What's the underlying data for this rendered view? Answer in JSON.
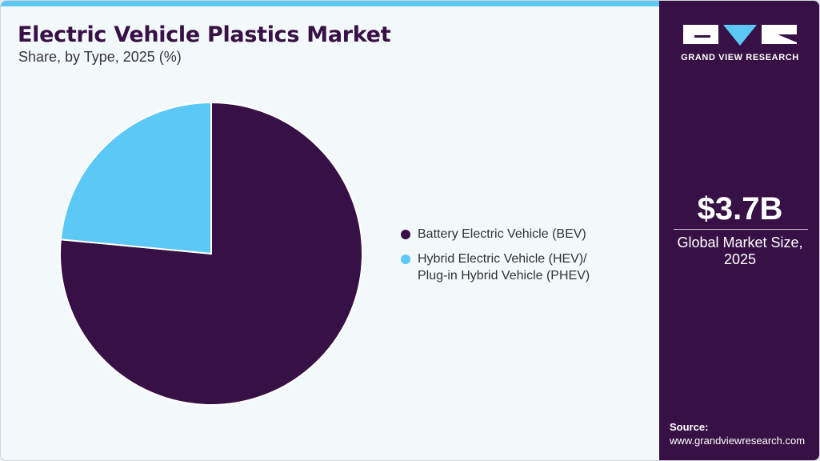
{
  "header": {
    "title": "Electric Vehicle Plastics Market",
    "subtitle": "Share, by Type, 2025 (%)"
  },
  "legend": {
    "items": [
      {
        "label": "Battery Electric Vehicle (BEV)",
        "color": "#371145"
      },
      {
        "label": "Hybrid Electric Vehicle (HEV)/\nPlug-in Hybrid Vehicle (PHEV)",
        "color": "#5bc8f5"
      }
    ]
  },
  "sidebar": {
    "logo_text": "GRAND VIEW RESEARCH",
    "market_value": "$3.7B",
    "market_label": "Global Market Size,\n2025",
    "source_label": "Source:",
    "source_url": "www.grandviewresearch.com"
  },
  "colors": {
    "brand_dark": "#371145",
    "accent": "#5bc8f5",
    "background": "#f3f8fb"
  },
  "chart_data": {
    "type": "pie",
    "title": "Electric Vehicle Plastics Market",
    "subtitle": "Share, by Type, 2025 (%)",
    "categories": [
      "Battery Electric Vehicle (BEV)",
      "Hybrid Electric Vehicle (HEV)/Plug-in Hybrid Vehicle (PHEV)"
    ],
    "values": [
      76.5,
      23.5
    ],
    "colors": [
      "#371145",
      "#5bc8f5"
    ],
    "legend_position": "right",
    "start_angle": "12 o'clock, HEV drawn counterclockwise"
  }
}
